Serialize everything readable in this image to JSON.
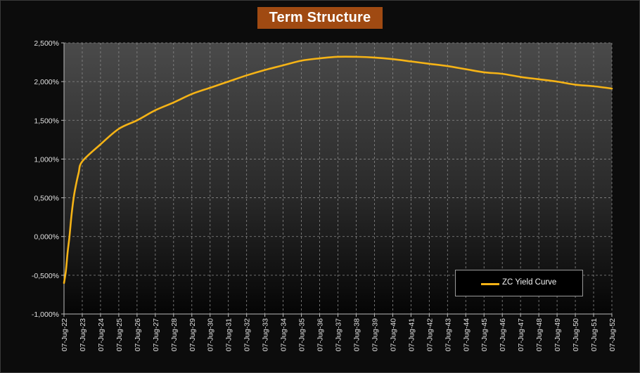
{
  "chart_data": {
    "type": "line",
    "title": "Term Structure",
    "xlabel": "",
    "ylabel": "",
    "ylim": [
      -1.0,
      2.5
    ],
    "y_ticks": [
      "2,500%",
      "2,000%",
      "1,500%",
      "1,000%",
      "0,500%",
      "0,000%",
      "-0,500%",
      "-1,000%"
    ],
    "y_tick_values": [
      2.5,
      2.0,
      1.5,
      1.0,
      0.5,
      0.0,
      -0.5,
      -1.0
    ],
    "categories": [
      "07-Jug-22",
      "07-Jug-23",
      "07-Jug-24",
      "07-Jug-25",
      "07-Jug-26",
      "07-Jug-27",
      "07-Jug-28",
      "07-Jug-29",
      "07-Jug-30",
      "07-Jug-31",
      "07-Jug-32",
      "07-Jug-33",
      "07-Jug-34",
      "07-Jug-35",
      "07-Jug-36",
      "07-Jug-37",
      "07-Jug-38",
      "07-Jug-39",
      "07-Jug-40",
      "07-Jug-41",
      "07-Jug-42",
      "07-Jug-43",
      "07-Jug-44",
      "07-Jug-45",
      "07-Jug-46",
      "07-Jug-47",
      "07-Jug-48",
      "07-Jug-49",
      "07-Jug-50",
      "07-Jug-51",
      "07-Jug-52"
    ],
    "grid": true,
    "legend_position": "bottom-right",
    "series": [
      {
        "name": "ZC Yield Curve",
        "color": "#f5b316",
        "x": [
          0,
          0.1,
          0.2,
          0.3,
          0.4,
          0.5,
          0.6,
          0.8,
          1,
          2,
          3,
          4,
          5,
          6,
          7,
          8,
          9,
          10,
          11,
          12,
          13,
          14,
          15,
          16,
          17,
          18,
          19,
          20,
          21,
          22,
          23,
          24,
          25,
          26,
          27,
          28,
          29,
          30
        ],
        "values": [
          -0.6,
          -0.45,
          -0.2,
          0.0,
          0.25,
          0.45,
          0.6,
          0.82,
          0.97,
          1.19,
          1.39,
          1.5,
          1.63,
          1.73,
          1.84,
          1.92,
          2.0,
          2.08,
          2.15,
          2.21,
          2.27,
          2.3,
          2.32,
          2.32,
          2.31,
          2.29,
          2.26,
          2.23,
          2.2,
          2.16,
          2.12,
          2.1,
          2.06,
          2.03,
          2.0,
          1.96,
          1.94,
          1.91
        ]
      }
    ]
  },
  "legend": {
    "label": "ZC Yield Curve"
  }
}
